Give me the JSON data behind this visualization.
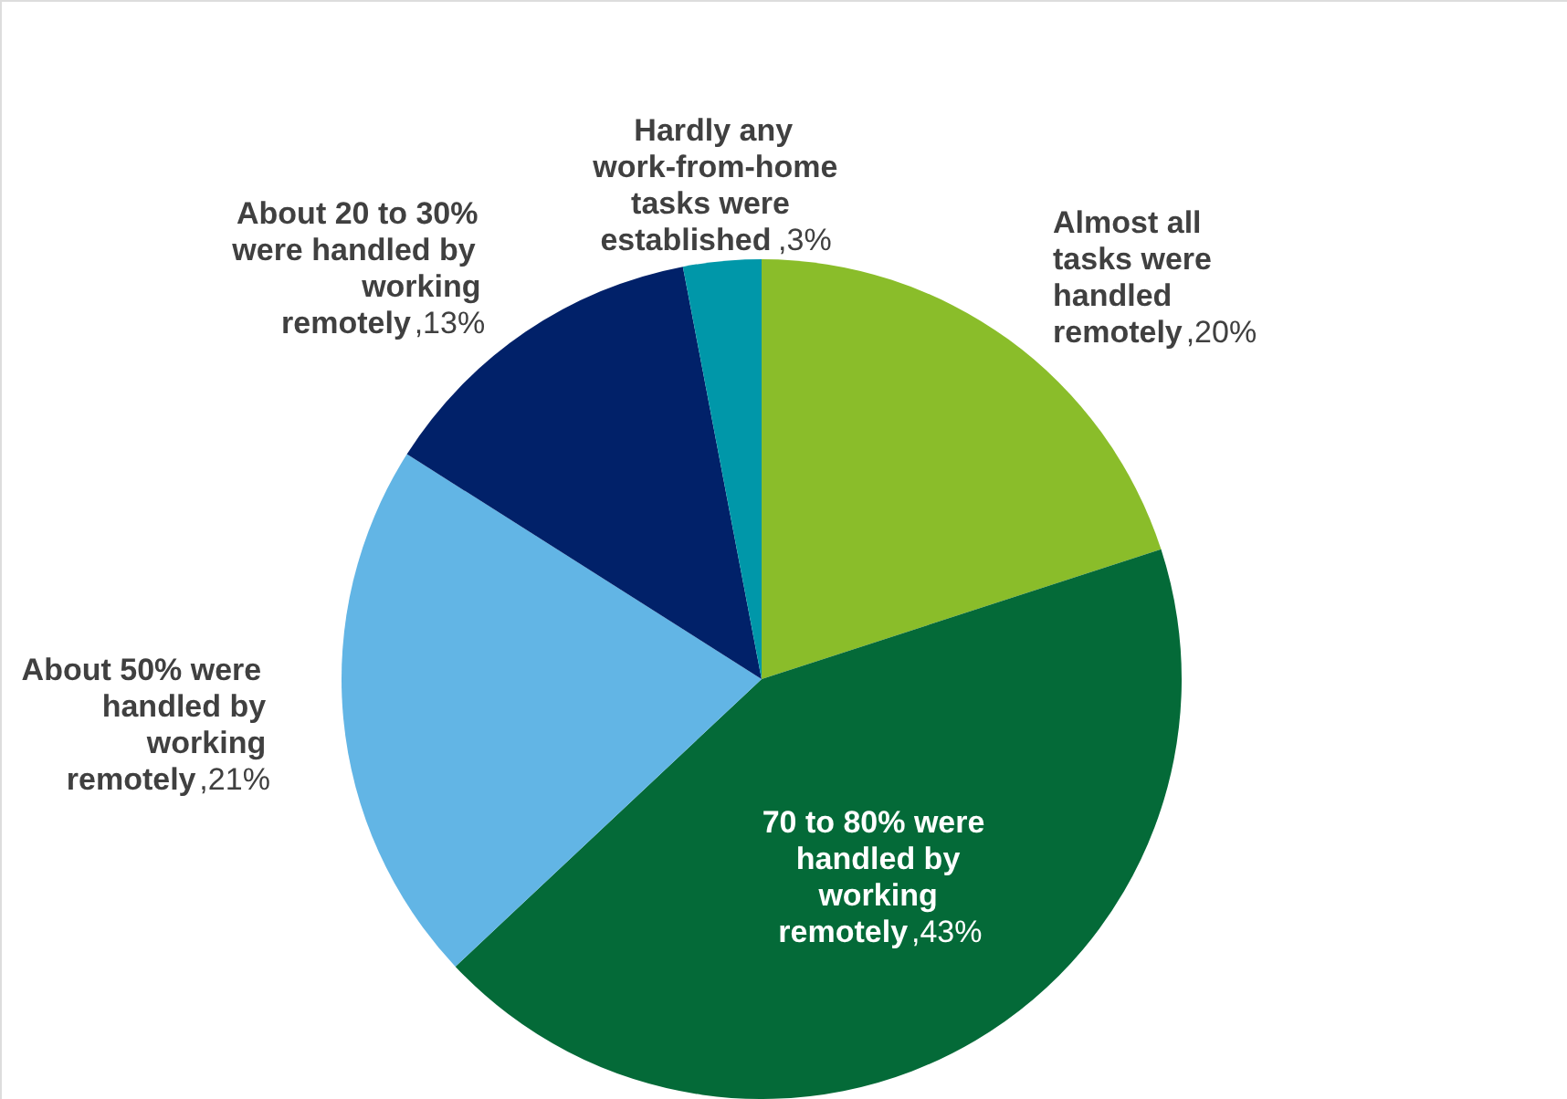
{
  "chart_data": {
    "type": "pie",
    "categories": [
      "Almost all tasks were handled remotely",
      "70 to 80% were handled by working remotely ",
      "About 50% were handled by working remotely",
      "About 20 to 30% were handled by working remotely",
      "Hardly any work-from-home tasks were established"
    ],
    "values": [
      20,
      43,
      21,
      13,
      3
    ],
    "colors": [
      "#8abd2a",
      "#046a38",
      "#62b5e5",
      "#012169",
      "#0097a9"
    ],
    "value_labels": [
      ",20%",
      ",43%",
      ",21%",
      ",13%",
      ",3%"
    ]
  }
}
